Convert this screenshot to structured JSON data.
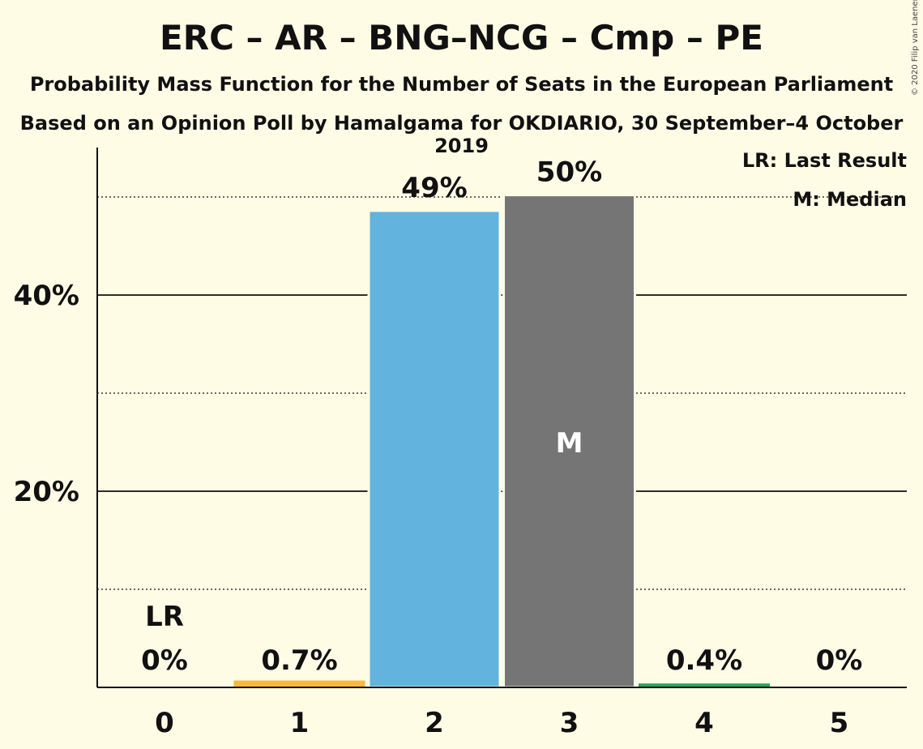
{
  "title": "ERC – AR – BNG–NCG – Cmp – PE",
  "subtitle": "Probability Mass Function for the Number of Seats in the European Parliament",
  "subtitle2": "Based on an Opinion Poll by Hamalgama for OKDIARIO, 30 September–4 October 2019",
  "copyright": "© 2020 Filip van Laenen",
  "legend": {
    "last_result": "LR: Last Result",
    "median": "M: Median"
  },
  "colors": {
    "background": "#fffce6",
    "bar_1": "#f5b942",
    "bar_2": "#62b3de",
    "bar_3": "#757575",
    "bar_4": "#27a65b",
    "median_text": "#ffffff"
  },
  "chart_data": {
    "type": "bar",
    "categories": [
      "0",
      "1",
      "2",
      "3",
      "4",
      "5"
    ],
    "values": [
      0,
      0.7,
      48.6,
      50.2,
      0.4,
      0
    ],
    "data_labels": [
      "0%",
      "0.7%",
      "49%",
      "50%",
      "0.4%",
      "0%"
    ],
    "bar_colors": [
      "#f5b942",
      "#f5b942",
      "#62b3de",
      "#757575",
      "#27a65b",
      "#27a65b"
    ],
    "ylim": [
      0,
      55
    ],
    "yticks": [
      20,
      40
    ],
    "ytick_labels": [
      "20%",
      "40%"
    ],
    "dotted_gridlines": [
      10,
      30,
      50
    ],
    "solid_gridlines": [
      20,
      40
    ],
    "last_result": {
      "category": "0",
      "label": "LR"
    },
    "median": {
      "category": "3",
      "label": "M"
    },
    "legend_position": "top-right"
  }
}
